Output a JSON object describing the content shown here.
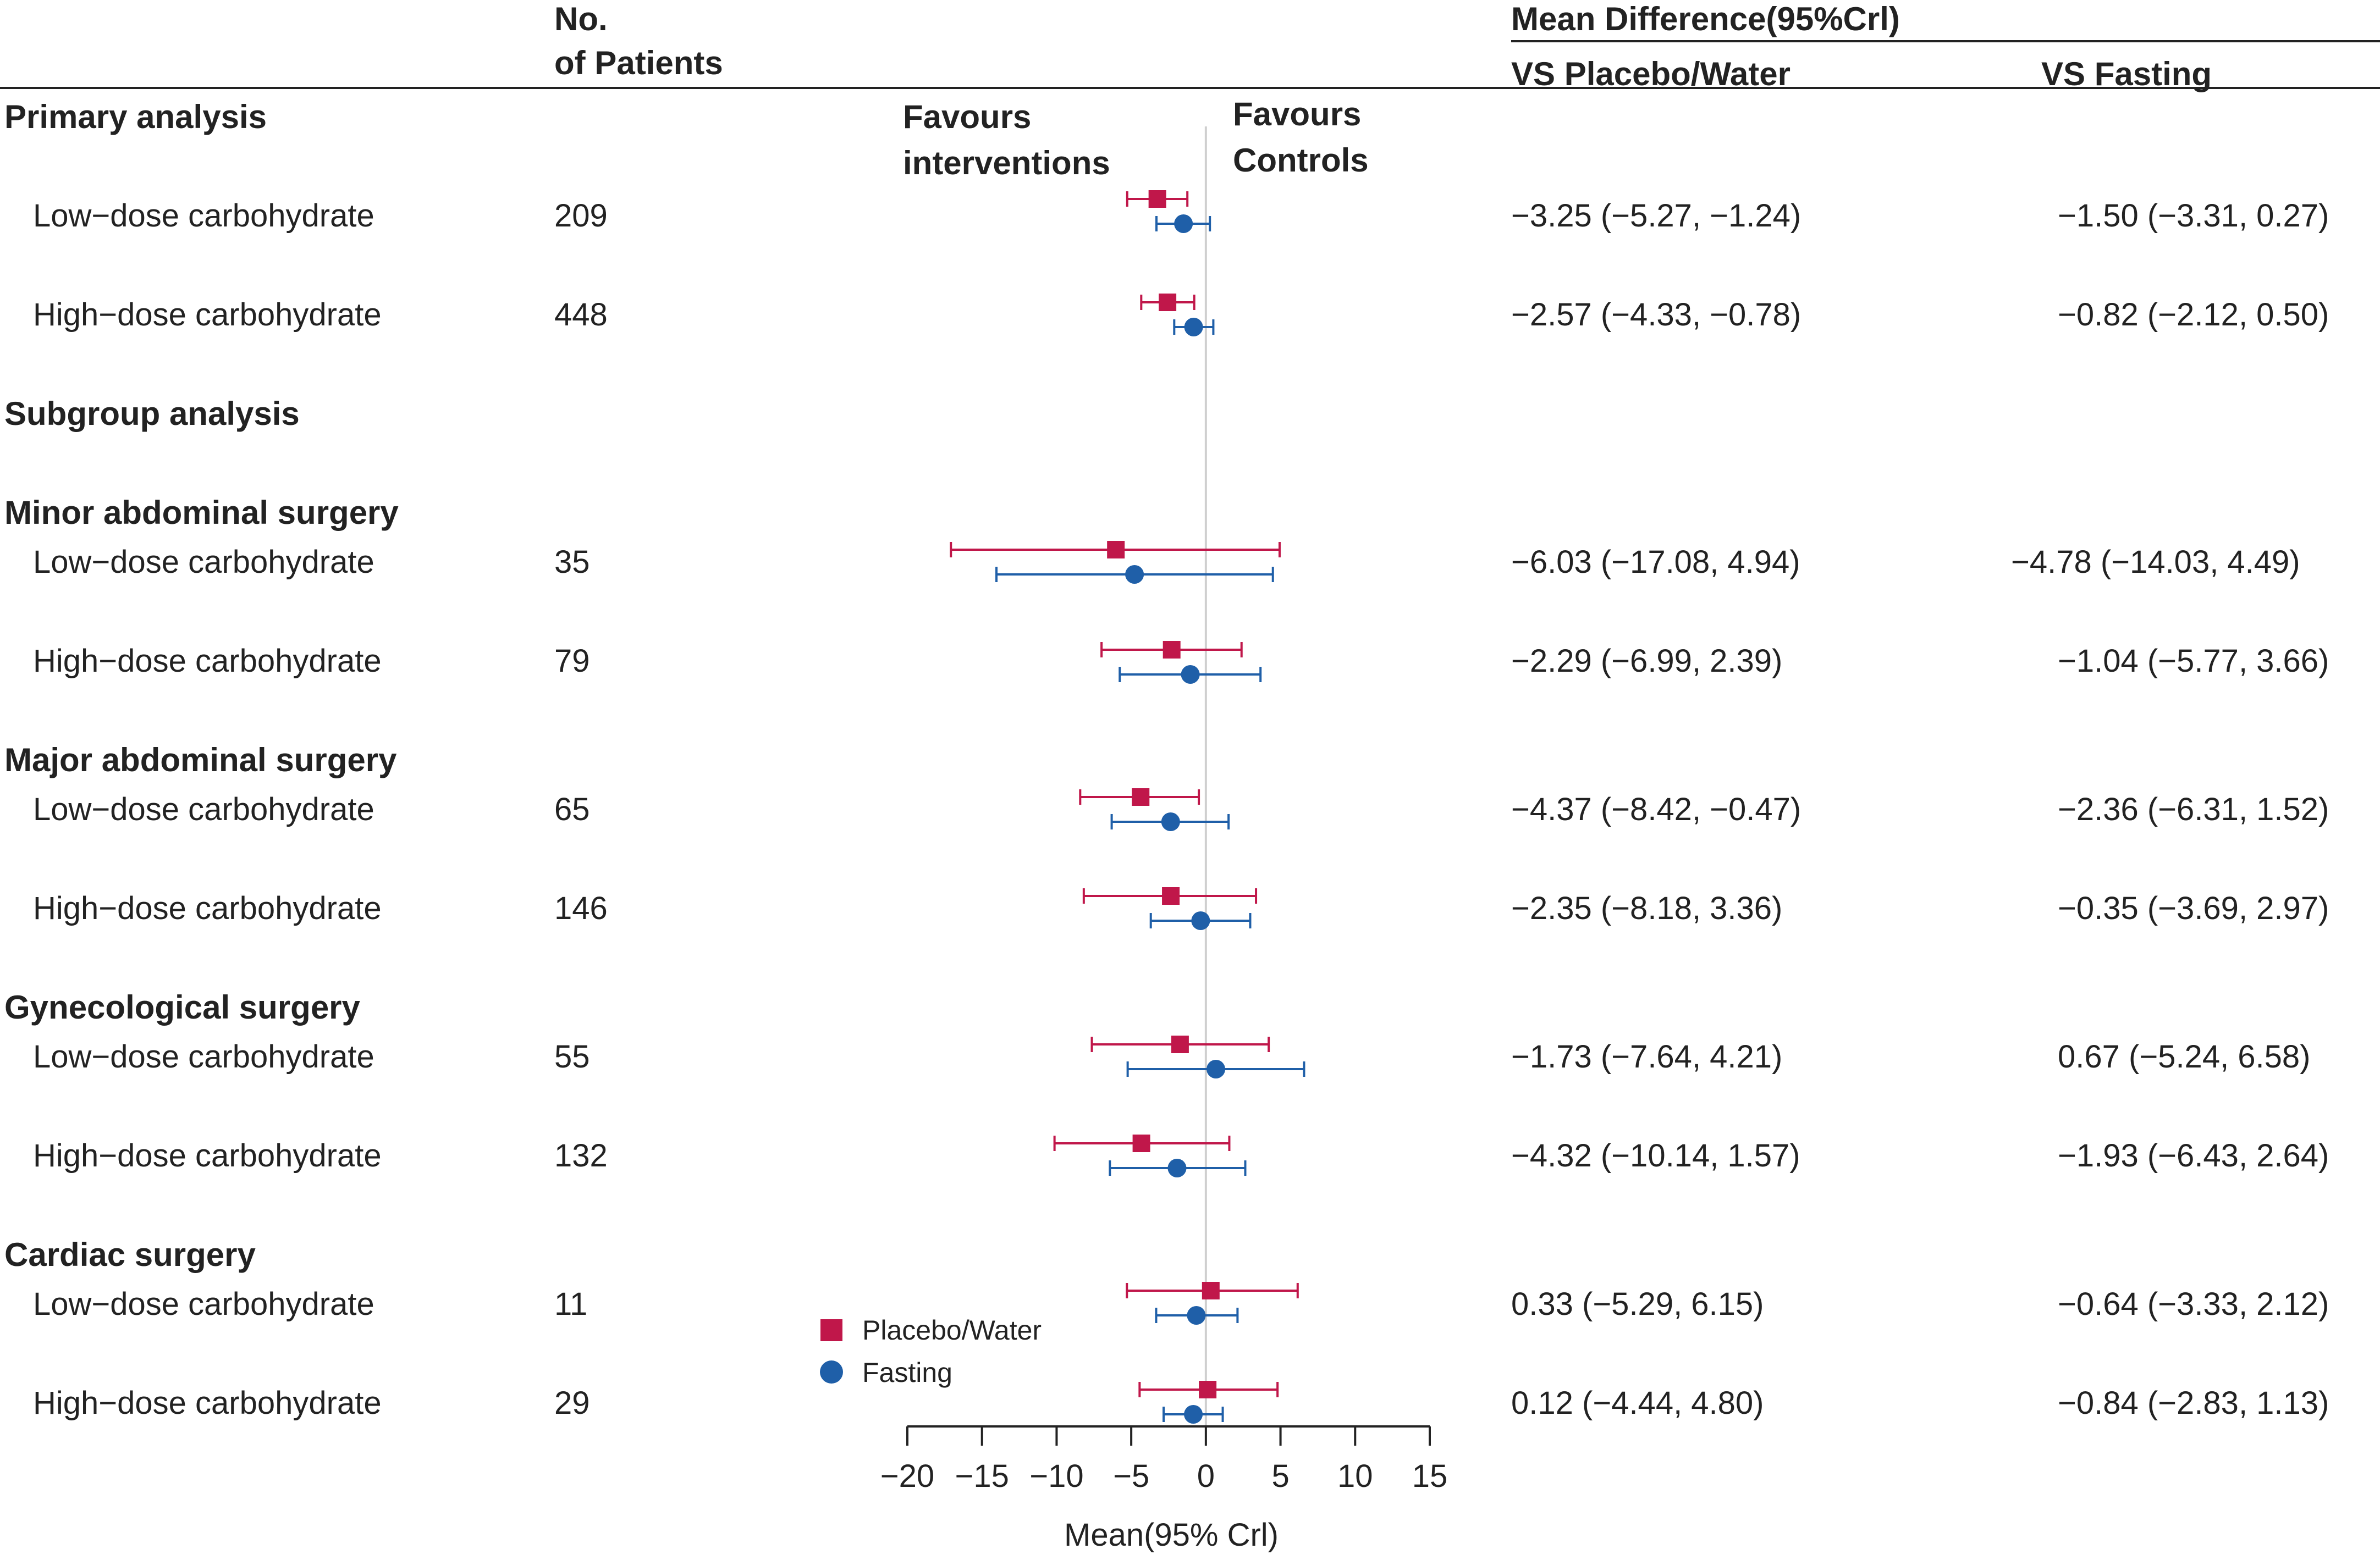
{
  "header": {
    "patients_title_line1": "No.",
    "patients_title_line2": "of Patients",
    "md_title": "Mean Difference(95%Crl)",
    "col_vs_placebo": "VS Placebo/Water",
    "col_vs_fasting": "VS Fasting"
  },
  "direction_labels": {
    "left_line1": "Favours",
    "left_line2": "interventions",
    "right_line1": "Favours",
    "right_line2": "Controls"
  },
  "sections": [
    {
      "heading": "Primary analysis",
      "rows": [
        {
          "label": "Low−dose carbohydrate",
          "patients": "209",
          "placebo_text": "−3.25 (−5.27, −1.24)",
          "fasting_text": "−1.50 (−3.31, 0.27)"
        },
        {
          "label": "High−dose carbohydrate",
          "patients": "448",
          "placebo_text": "−2.57 (−4.33, −0.78)",
          "fasting_text": "−0.82 (−2.12, 0.50)"
        }
      ]
    },
    {
      "heading": "Subgroup analysis",
      "rows": []
    },
    {
      "heading": "Minor abdominal surgery",
      "rows": [
        {
          "label": "Low−dose carbohydrate",
          "patients": "35",
          "placebo_text": "−6.03 (−17.08, 4.94)",
          "fasting_text": "−4.78 (−14.03, 4.49)"
        },
        {
          "label": "High−dose carbohydrate",
          "patients": "79",
          "placebo_text": "−2.29 (−6.99, 2.39)",
          "fasting_text": "−1.04 (−5.77, 3.66)"
        }
      ]
    },
    {
      "heading": "Major abdominal surgery",
      "rows": [
        {
          "label": "Low−dose carbohydrate",
          "patients": "65",
          "placebo_text": "−4.37 (−8.42, −0.47)",
          "fasting_text": "−2.36 (−6.31, 1.52)"
        },
        {
          "label": "High−dose carbohydrate",
          "patients": "146",
          "placebo_text": "−2.35 (−8.18, 3.36)",
          "fasting_text": "−0.35 (−3.69, 2.97)"
        }
      ]
    },
    {
      "heading": "Gynecological surgery",
      "rows": [
        {
          "label": "Low−dose carbohydrate",
          "patients": "55",
          "placebo_text": "−1.73 (−7.64, 4.21)",
          "fasting_text": "0.67 (−5.24, 6.58)"
        },
        {
          "label": "High−dose carbohydrate",
          "patients": "132",
          "placebo_text": "−4.32 (−10.14, 1.57)",
          "fasting_text": "−1.93 (−6.43, 2.64)"
        }
      ]
    },
    {
      "heading": "Cardiac surgery",
      "rows": [
        {
          "label": "Low−dose carbohydrate",
          "patients": "11",
          "placebo_text": "0.33 (−5.29, 6.15)",
          "fasting_text": "−0.64 (−3.33, 2.12)"
        },
        {
          "label": "High−dose carbohydrate",
          "patients": "29",
          "placebo_text": "0.12 (−4.44, 4.80)",
          "fasting_text": "−0.84 (−2.83, 1.13)"
        }
      ]
    }
  ],
  "chart_data": {
    "type": "forest",
    "xlabel": "Mean(95% Crl)",
    "xlim": [
      -20,
      15
    ],
    "xticks": [
      -20,
      -15,
      -10,
      -5,
      0,
      5,
      10,
      15
    ],
    "tick_labels": [
      "−20",
      "−15",
      "−10",
      "−5",
      "0",
      "5",
      "10",
      "15"
    ],
    "reference_line": 0,
    "legend": [
      {
        "name": "Placebo/Water",
        "color": "#c0174a",
        "marker": "square"
      },
      {
        "name": "Fasting",
        "color": "#1f5fa8",
        "marker": "circle"
      }
    ],
    "series": [
      {
        "name": "Placebo/Water",
        "points": [
          {
            "mean": -3.25,
            "lower": -5.27,
            "upper": -1.24
          },
          {
            "mean": -2.57,
            "lower": -4.33,
            "upper": -0.78
          },
          {
            "mean": -6.03,
            "lower": -17.08,
            "upper": 4.94
          },
          {
            "mean": -2.29,
            "lower": -6.99,
            "upper": 2.39
          },
          {
            "mean": -4.37,
            "lower": -8.42,
            "upper": -0.47
          },
          {
            "mean": -2.35,
            "lower": -8.18,
            "upper": 3.36
          },
          {
            "mean": -1.73,
            "lower": -7.64,
            "upper": 4.21
          },
          {
            "mean": -4.32,
            "lower": -10.14,
            "upper": 1.57
          },
          {
            "mean": 0.33,
            "lower": -5.29,
            "upper": 6.15
          },
          {
            "mean": 0.12,
            "lower": -4.44,
            "upper": 4.8
          }
        ]
      },
      {
        "name": "Fasting",
        "points": [
          {
            "mean": -1.5,
            "lower": -3.31,
            "upper": 0.27
          },
          {
            "mean": -0.82,
            "lower": -2.12,
            "upper": 0.5
          },
          {
            "mean": -4.78,
            "lower": -14.03,
            "upper": 4.49
          },
          {
            "mean": -1.04,
            "lower": -5.77,
            "upper": 3.66
          },
          {
            "mean": -2.36,
            "lower": -6.31,
            "upper": 1.52
          },
          {
            "mean": -0.35,
            "lower": -3.69,
            "upper": 2.97
          },
          {
            "mean": 0.67,
            "lower": -5.24,
            "upper": 6.58
          },
          {
            "mean": -1.93,
            "lower": -6.43,
            "upper": 2.64
          },
          {
            "mean": -0.64,
            "lower": -3.33,
            "upper": 2.12
          },
          {
            "mean": -0.84,
            "lower": -2.83,
            "upper": 1.13
          }
        ]
      }
    ]
  }
}
